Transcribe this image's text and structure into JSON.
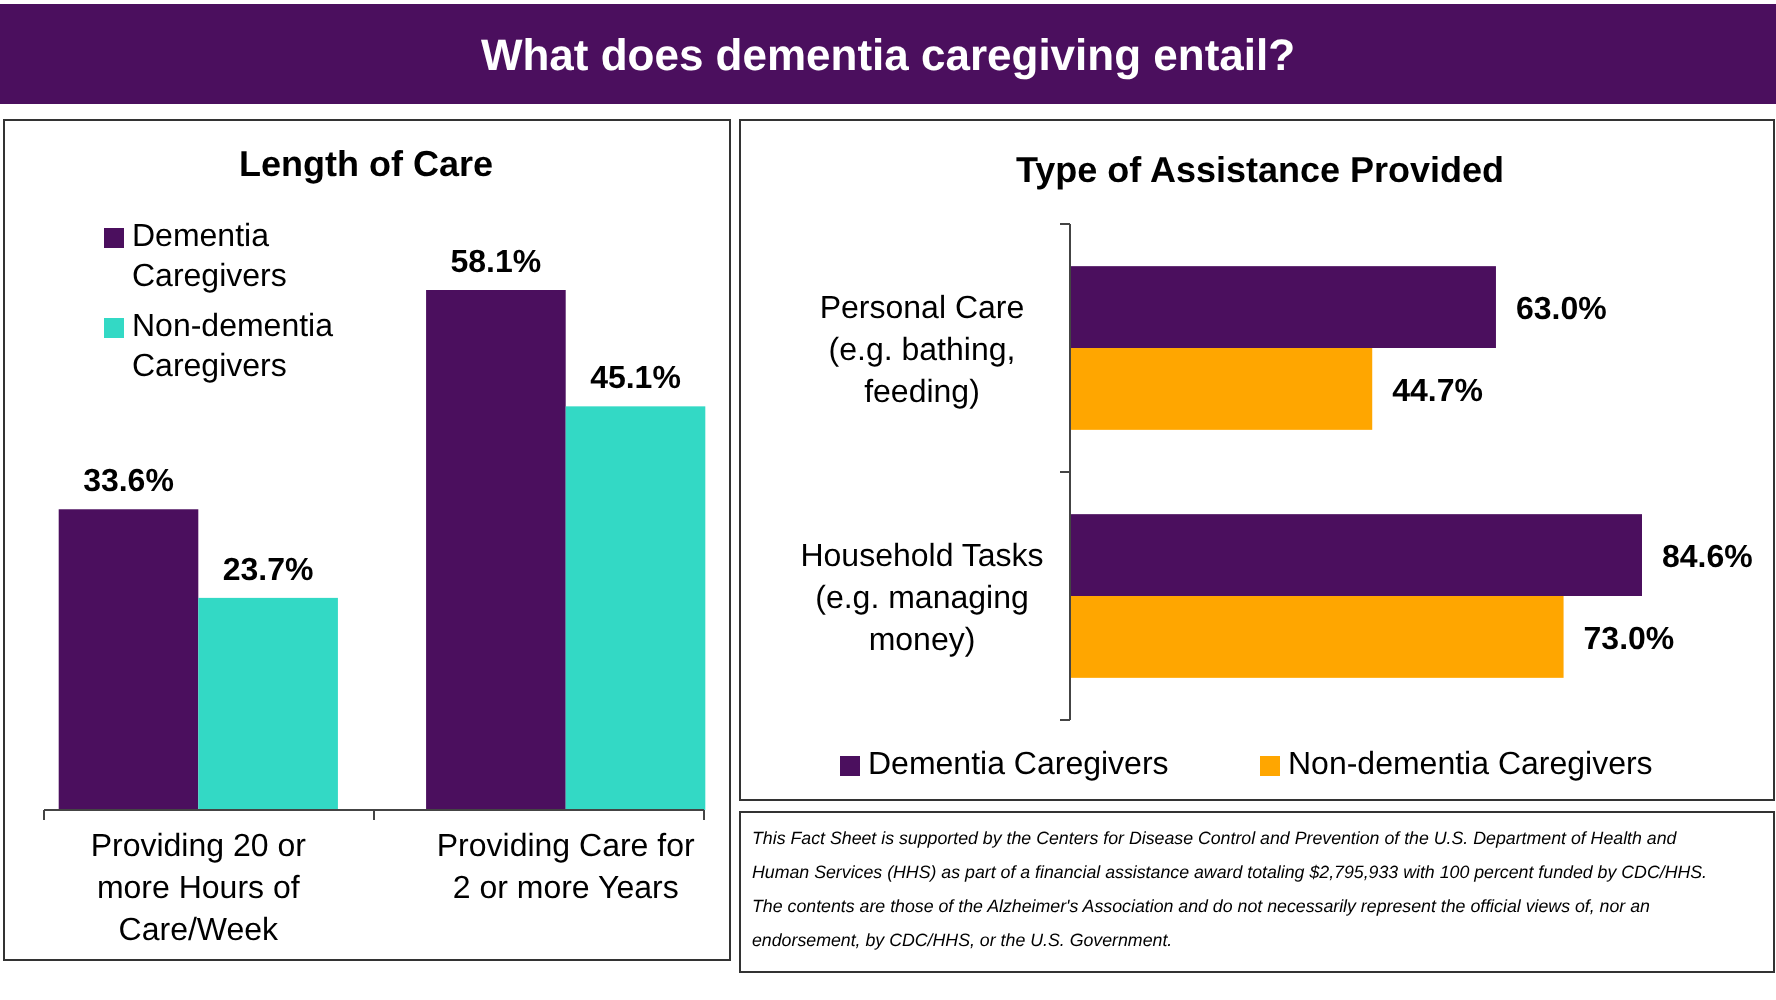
{
  "chart_data": [
    {
      "type": "bar",
      "title": "What does dementia caregiving entail?",
      "subtitle": "Length of Care",
      "categories": [
        "Providing 20 or more Hours of Care/Week",
        "Providing Care for 2 or more Years"
      ],
      "series": [
        {
          "name": "Dementia Caregivers",
          "color": "#4b0f5e",
          "values": [
            33.6,
            58.1
          ],
          "value_labels": [
            "33.6%",
            "58.1%"
          ]
        },
        {
          "name": "Non-dementia Caregivers",
          "color": "#33d9c5",
          "values": [
            23.7,
            45.1
          ],
          "value_labels": [
            "23.7%",
            "45.1%"
          ]
        }
      ],
      "legend": "top left"
    },
    {
      "type": "bar",
      "orientation": "horizontal",
      "title": "Type of Assistance Provided",
      "categories": [
        "Personal Care (e.g. bathing, feeding)",
        "Household Tasks (e.g. managing money)"
      ],
      "series": [
        {
          "name": "Dementia Caregivers",
          "color": "#4b0f5e",
          "values": [
            63.0,
            84.6
          ],
          "value_labels": [
            "63.0%",
            "84.6%"
          ]
        },
        {
          "name": "Non-dementia Caregivers",
          "color": "#ffa600",
          "values": [
            44.7,
            73.0
          ],
          "value_labels": [
            "44.7%",
            "73.0%"
          ]
        }
      ],
      "legend": "bottom",
      "annotations": [
        "This Fact Sheet is supported by the Centers for Disease Control and Prevention of the U.S. Department of Health and Human Services (HHS) as part of a financial assistance award totaling $2,795,933 with 100 percent funded by CDC/HHS. The contents are those of the Alzheimer's Association and do not necessarily represent the official views of, nor an endorsement, by CDC/HHS, or the U.S. Government."
      ]
    }
  ]
}
